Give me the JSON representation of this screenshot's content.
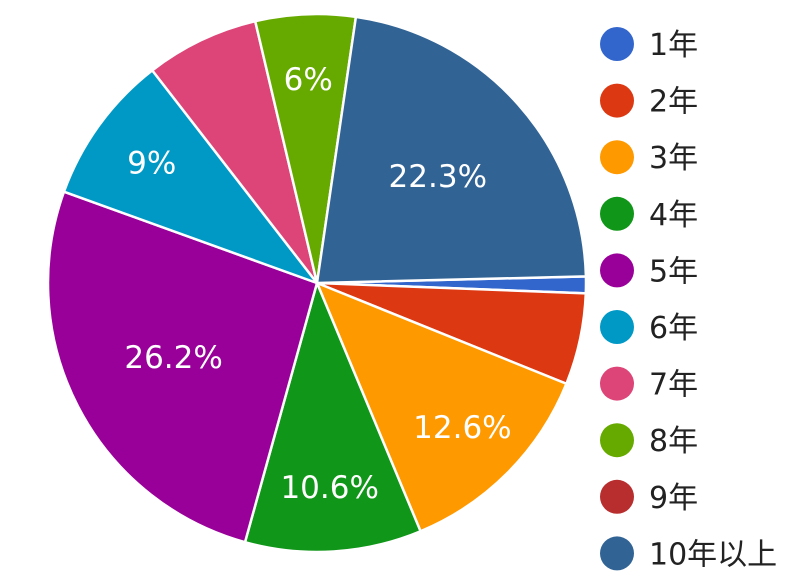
{
  "chart_data": {
    "type": "pie",
    "title": "",
    "legend_position": "right",
    "slices": [
      {
        "label": "1年",
        "value": 1.0,
        "display": "",
        "color": "#3366cc"
      },
      {
        "label": "2年",
        "value": 5.5,
        "display": "",
        "color": "#dc3912"
      },
      {
        "label": "3年",
        "value": 12.6,
        "display": "12.6%",
        "color": "#ff9900"
      },
      {
        "label": "4年",
        "value": 10.6,
        "display": "10.6%",
        "color": "#109618"
      },
      {
        "label": "5年",
        "value": 26.2,
        "display": "26.2%",
        "color": "#990099"
      },
      {
        "label": "6年",
        "value": 9.0,
        "display": "9%",
        "color": "#0099c6"
      },
      {
        "label": "7年",
        "value": 6.8,
        "display": "",
        "color": "#dd4477"
      },
      {
        "label": "8年",
        "value": 6.0,
        "display": "6%",
        "color": "#66aa00"
      },
      {
        "label": "9年",
        "value": 0.0,
        "display": "",
        "color": "#b82e2e"
      },
      {
        "label": "10年以上",
        "value": 22.3,
        "display": "22.3%",
        "color": "#316395"
      }
    ]
  }
}
